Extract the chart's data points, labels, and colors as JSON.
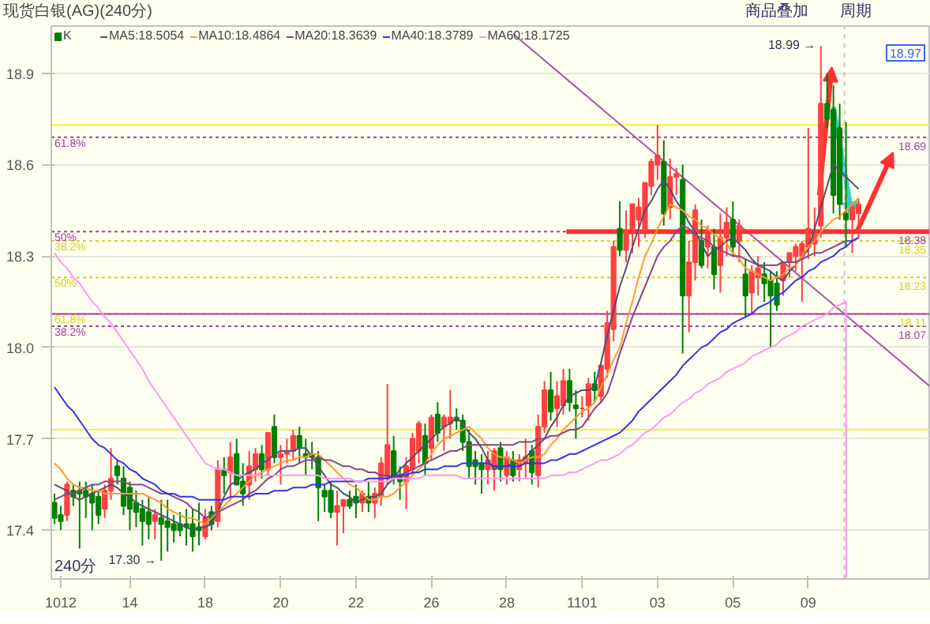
{
  "chart_data": {
    "type": "candlestick",
    "title": "现货白银(AG)(240分)",
    "annotations": [
      "商品叠加",
      "周期",
      "240分",
      "18.97",
      "61.8%",
      "50%",
      "38.2%",
      "50%",
      "61.8%",
      "38.2%",
      "17.30 →",
      "18.99 →"
    ],
    "categories": [
      null,
      "1012",
      null,
      null,
      null,
      null,
      null,
      null,
      null,
      null,
      null,
      null,
      "14",
      null,
      null,
      null,
      null,
      null,
      null,
      null,
      null,
      null,
      null,
      null,
      "18",
      null,
      null,
      null,
      null,
      null,
      null,
      null,
      null,
      null,
      null,
      null,
      "20",
      null,
      null,
      null,
      null,
      null,
      null,
      null,
      null,
      null,
      null,
      null,
      "22",
      null,
      null,
      null,
      null,
      null,
      null,
      null,
      null,
      null,
      null,
      null,
      "26",
      null,
      null,
      null,
      null,
      null,
      null,
      null,
      null,
      null,
      null,
      null,
      "28",
      null,
      null,
      null,
      null,
      null,
      null,
      null,
      null,
      null,
      null,
      null,
      "1101",
      null,
      null,
      null,
      null,
      null,
      null,
      null,
      null,
      null,
      null,
      null,
      "03",
      null,
      null,
      null,
      null,
      null,
      null,
      null,
      null,
      null,
      null,
      null,
      "05",
      null,
      null,
      null,
      null,
      null,
      null,
      null,
      null,
      null,
      null,
      null,
      "09",
      null,
      null,
      null,
      null,
      null,
      null,
      null,
      null
    ],
    "ylim": [
      17.24,
      19.055
    ],
    "yticks": [
      {
        "value": 17.4,
        "label": "17.4"
      },
      {
        "value": 17.7,
        "label": "17.7"
      },
      {
        "value": 18,
        "label": "18.0"
      },
      {
        "value": 18.3,
        "label": "18.3"
      },
      {
        "value": 18.6,
        "label": "18.6"
      },
      {
        "value": 18.9,
        "label": "18.9"
      }
    ],
    "grid": "y",
    "legend": "top left",
    "ref_lines": [
      {
        "axis": "y",
        "value": 18.73,
        "color": "#f0f040",
        "line_style": "solid"
      },
      {
        "axis": "y",
        "value": 17.73,
        "color": "#f0f040",
        "line_style": "solid"
      },
      {
        "axis": "y",
        "value": 18.69,
        "label": "18.69",
        "color": "#a040a0",
        "line_style": "dotted"
      },
      {
        "axis": "y",
        "value": 18.38,
        "label": "18.38",
        "color": "#a040a0",
        "line_style": "dotted"
      },
      {
        "axis": "y",
        "value": 18.35,
        "label": "18.35",
        "color": "#d8d020",
        "line_style": "dotted"
      },
      {
        "axis": "y",
        "value": 18.23,
        "label": "18.23",
        "color": "#d8d020",
        "line_style": "dotted"
      },
      {
        "axis": "y",
        "value": 18.11,
        "label": "18.11",
        "color": "#d8d020",
        "line_style": "dotted"
      },
      {
        "axis": "y",
        "value": 18.11,
        "color": "#a040a0",
        "line_style": "solid"
      },
      {
        "axis": "y",
        "value": 18.07,
        "label": "18.07",
        "color": "#a040a0",
        "line_style": "dotted"
      }
    ],
    "series": [
      {
        "name": "K",
        "colors": [
          "#008000",
          "#008000",
          "#ff4040",
          "#008000",
          "#008000",
          "#008000",
          "#008000",
          "#008000",
          "#ff4040",
          "#ff4040",
          "#008000",
          "#008000",
          "#008000",
          "#008000",
          "#008000",
          "#008000",
          "#ff4040",
          "#008000",
          "#008000",
          "#008000",
          "#008000",
          "#008000",
          "#008000",
          "#008000",
          "#ff4040",
          "#008000",
          "#ff4040",
          "#008000",
          "#ff4040",
          "#008000",
          "#008000",
          "#ff4040",
          "#ff4040",
          "#008000",
          "#ff4040",
          "#008000",
          "#ff4040",
          "#ff4040",
          "#ff4040",
          "#008000",
          "#008000",
          "#008000",
          "#008000",
          "#008000",
          "#008000",
          "#ff4040",
          "#ff4040",
          "#008000",
          "#008000",
          "#ff4040",
          "#008000",
          "#ff4040",
          "#ff4040",
          "#ff4040",
          "#008000",
          "#008000",
          "#ff4040",
          "#ff4040",
          "#ff4040",
          "#008000",
          "#ff4040",
          "#008000",
          "#ff4040",
          "#ff4040",
          "#008000",
          "#008000",
          "#008000",
          "#008000",
          "#008000",
          "#ff4040",
          "#ff4040",
          "#008000",
          "#ff4040",
          "#008000",
          "#ff4040",
          "#ff4040",
          "#008000",
          "#ff4040",
          "#ff4040",
          "#008000",
          "#ff4040",
          "#ff4040",
          "#008000",
          "#008000",
          "#ff4040",
          "#ff4040",
          "#008000",
          "#ff4040",
          "#ff4040",
          "#ff4040",
          "#008000",
          "#ff4040",
          "#ff4040",
          "#ff4040",
          "#ff4040",
          "#ff4040",
          "#ff4040",
          "#008000",
          "#ff4040",
          "#ff4040",
          "#008000",
          "#ff4040",
          "#ff4040",
          "#008000",
          "#ff4040",
          "#008000",
          "#ff4040",
          "#ff4040",
          "#008000",
          "#ff4040",
          "#008000",
          "#ff4040",
          "#ff4040",
          "#008000",
          "#008000",
          "#008000",
          "#ff4040",
          "#ff4040",
          "#ff4040",
          "#ff4040",
          "#ff4040",
          "#ff4040",
          "#ff4040",
          "#008000",
          "#008000",
          "#008000",
          "#008000",
          "#ff4040",
          "#ff4040"
        ],
        "ohlc": [
          [
            17.49,
            17.52,
            17.42,
            17.44
          ],
          [
            17.45,
            17.48,
            17.4,
            17.43
          ],
          [
            17.45,
            17.56,
            17.43,
            17.55
          ],
          [
            17.53,
            17.55,
            17.48,
            17.51
          ],
          [
            17.53,
            17.56,
            17.34,
            17.52
          ],
          [
            17.53,
            17.56,
            17.44,
            17.51
          ],
          [
            17.52,
            17.55,
            17.4,
            17.49
          ],
          [
            17.51,
            17.53,
            17.42,
            17.45
          ],
          [
            17.47,
            17.55,
            17.44,
            17.53
          ],
          [
            17.53,
            17.67,
            17.5,
            17.57
          ],
          [
            17.61,
            17.63,
            17.55,
            17.58
          ],
          [
            17.57,
            17.61,
            17.45,
            17.48
          ],
          [
            17.54,
            17.56,
            17.4,
            17.47
          ],
          [
            17.49,
            17.53,
            17.41,
            17.46
          ],
          [
            17.47,
            17.5,
            17.35,
            17.43
          ],
          [
            17.46,
            17.51,
            17.37,
            17.42
          ],
          [
            17.43,
            17.47,
            17.37,
            17.45
          ],
          [
            17.44,
            17.5,
            17.3,
            17.42
          ],
          [
            17.43,
            17.5,
            17.33,
            17.41
          ],
          [
            17.42,
            17.45,
            17.36,
            17.4
          ],
          [
            17.42,
            17.46,
            17.38,
            17.4
          ],
          [
            17.42,
            17.47,
            17.35,
            17.41
          ],
          [
            17.42,
            17.47,
            17.33,
            17.38
          ],
          [
            17.41,
            17.49,
            17.35,
            17.4
          ],
          [
            17.38,
            17.47,
            17.37,
            17.44
          ],
          [
            17.46,
            17.48,
            17.4,
            17.42
          ],
          [
            17.43,
            17.63,
            17.41,
            17.6
          ],
          [
            17.6,
            17.64,
            17.52,
            17.58
          ],
          [
            17.59,
            17.69,
            17.5,
            17.64
          ],
          [
            17.65,
            17.7,
            17.55,
            17.55
          ],
          [
            17.56,
            17.62,
            17.48,
            17.52
          ],
          [
            17.55,
            17.66,
            17.5,
            17.61
          ],
          [
            17.6,
            17.67,
            17.56,
            17.65
          ],
          [
            17.65,
            17.68,
            17.57,
            17.6
          ],
          [
            17.6,
            17.72,
            17.58,
            17.72
          ],
          [
            17.74,
            17.78,
            17.62,
            17.64
          ],
          [
            17.64,
            17.68,
            17.55,
            17.65
          ],
          [
            17.65,
            17.7,
            17.62,
            17.66
          ],
          [
            17.66,
            17.73,
            17.63,
            17.71
          ],
          [
            17.71,
            17.74,
            17.62,
            17.67
          ],
          [
            17.65,
            17.7,
            17.58,
            17.64
          ],
          [
            17.65,
            17.69,
            17.6,
            17.64
          ],
          [
            17.64,
            17.66,
            17.43,
            17.54
          ],
          [
            17.53,
            17.55,
            17.46,
            17.51
          ],
          [
            17.53,
            17.56,
            17.44,
            17.46
          ],
          [
            17.46,
            17.53,
            17.35,
            17.48
          ],
          [
            17.48,
            17.5,
            17.39,
            17.5
          ],
          [
            17.5,
            17.53,
            17.47,
            17.48
          ],
          [
            17.51,
            17.55,
            17.44,
            17.49
          ],
          [
            17.49,
            17.53,
            17.46,
            17.52
          ],
          [
            17.51,
            17.56,
            17.46,
            17.49
          ],
          [
            17.49,
            17.54,
            17.44,
            17.52
          ],
          [
            17.51,
            17.64,
            17.48,
            17.62
          ],
          [
            17.57,
            17.88,
            17.55,
            17.68
          ],
          [
            17.66,
            17.71,
            17.55,
            17.57
          ],
          [
            17.58,
            17.61,
            17.5,
            17.56
          ],
          [
            17.56,
            17.64,
            17.47,
            17.61
          ],
          [
            17.6,
            17.72,
            17.58,
            17.7
          ],
          [
            17.66,
            17.76,
            17.62,
            17.75
          ],
          [
            17.71,
            17.75,
            17.58,
            17.62
          ],
          [
            17.67,
            17.78,
            17.63,
            17.77
          ],
          [
            17.78,
            17.82,
            17.69,
            17.72
          ],
          [
            17.74,
            17.78,
            17.66,
            17.77
          ],
          [
            17.75,
            17.86,
            17.7,
            17.77
          ],
          [
            17.77,
            17.8,
            17.73,
            17.76
          ],
          [
            17.76,
            17.78,
            17.66,
            17.69
          ],
          [
            17.69,
            17.73,
            17.57,
            17.61
          ],
          [
            17.63,
            17.66,
            17.55,
            17.61
          ],
          [
            17.62,
            17.65,
            17.52,
            17.6
          ],
          [
            17.6,
            17.66,
            17.55,
            17.63
          ],
          [
            17.6,
            17.67,
            17.53,
            17.66
          ],
          [
            17.67,
            17.69,
            17.56,
            17.6
          ],
          [
            17.58,
            17.66,
            17.55,
            17.64
          ],
          [
            17.63,
            17.66,
            17.56,
            17.58
          ],
          [
            17.6,
            17.65,
            17.56,
            17.63
          ],
          [
            17.62,
            17.7,
            17.57,
            17.64
          ],
          [
            17.66,
            17.68,
            17.55,
            17.59
          ],
          [
            17.58,
            17.78,
            17.54,
            17.74
          ],
          [
            17.74,
            17.89,
            17.72,
            17.86
          ],
          [
            17.86,
            17.92,
            17.76,
            17.79
          ],
          [
            17.8,
            17.89,
            17.74,
            17.84
          ],
          [
            17.81,
            17.93,
            17.78,
            17.89
          ],
          [
            17.89,
            17.93,
            17.79,
            17.82
          ],
          [
            17.81,
            17.86,
            17.7,
            17.8
          ],
          [
            17.8,
            17.84,
            17.77,
            17.8
          ],
          [
            17.81,
            17.9,
            17.76,
            17.88
          ],
          [
            17.88,
            17.92,
            17.82,
            17.86
          ],
          [
            17.84,
            17.95,
            17.82,
            17.94
          ],
          [
            17.93,
            18.12,
            17.9,
            18.08
          ],
          [
            18.06,
            18.35,
            18.02,
            18.33
          ],
          [
            18.39,
            18.48,
            18.3,
            18.32
          ],
          [
            18.32,
            18.45,
            18.28,
            18.38
          ],
          [
            18.38,
            18.47,
            18.31,
            18.47
          ],
          [
            18.42,
            18.49,
            18.33,
            18.46
          ],
          [
            18.38,
            18.54,
            18.36,
            18.54
          ],
          [
            18.53,
            18.62,
            18.5,
            18.61
          ],
          [
            18.6,
            18.73,
            18.55,
            18.63
          ],
          [
            18.61,
            18.68,
            18.4,
            18.44
          ],
          [
            18.46,
            18.62,
            18.42,
            18.56
          ],
          [
            18.56,
            18.59,
            18.5,
            18.57
          ],
          [
            18.55,
            18.6,
            17.98,
            18.17
          ],
          [
            18.17,
            18.35,
            18.05,
            18.28
          ],
          [
            18.28,
            18.47,
            18.22,
            18.45
          ],
          [
            18.35,
            18.42,
            18.26,
            18.27
          ],
          [
            18.33,
            18.4,
            18.26,
            18.38
          ],
          [
            18.33,
            18.39,
            18.19,
            18.24
          ],
          [
            18.27,
            18.44,
            18.18,
            18.36
          ],
          [
            18.36,
            18.46,
            18.3,
            18.41
          ],
          [
            18.42,
            18.48,
            18.3,
            18.33
          ],
          [
            18.35,
            18.42,
            18.28,
            18.4
          ],
          [
            18.24,
            18.29,
            18.1,
            18.17
          ],
          [
            18.18,
            18.27,
            18.11,
            18.25
          ],
          [
            18.23,
            18.3,
            18.17,
            18.26
          ],
          [
            18.24,
            18.28,
            18.15,
            18.21
          ],
          [
            18.22,
            18.25,
            18.0,
            18.17
          ],
          [
            18.21,
            18.25,
            18.12,
            18.14
          ],
          [
            18.22,
            18.28,
            18.17,
            18.28
          ],
          [
            18.28,
            18.31,
            18.23,
            18.31
          ],
          [
            18.3,
            18.34,
            18.25,
            18.33
          ],
          [
            18.3,
            18.35,
            18.15,
            18.34
          ],
          [
            18.33,
            18.72,
            18.29,
            18.39
          ],
          [
            18.34,
            18.46,
            18.3,
            18.38
          ],
          [
            18.4,
            18.99,
            18.36,
            18.8
          ],
          [
            18.8,
            18.9,
            18.72,
            18.75
          ],
          [
            18.78,
            18.86,
            18.44,
            18.5
          ],
          [
            18.72,
            18.8,
            18.42,
            18.47
          ],
          [
            18.44,
            18.74,
            18.33,
            18.42
          ],
          [
            18.42,
            18.47,
            18.31,
            18.46
          ],
          [
            18.44,
            18.49,
            18.36,
            18.47
          ]
        ]
      },
      {
        "name": "MA5:18.5054",
        "type": "line",
        "color": "#505070",
        "values": [
          17.55,
          17.54,
          17.53,
          17.51,
          17.5,
          17.51,
          17.52,
          17.53,
          17.54,
          17.55,
          17.54,
          17.52,
          17.51,
          17.49,
          17.48,
          17.47,
          17.46,
          17.45,
          17.44,
          17.43,
          17.42,
          17.41,
          17.4,
          17.41,
          17.41,
          17.42,
          17.46,
          17.51,
          17.55,
          17.56,
          17.58,
          17.59,
          17.6,
          17.62,
          17.63,
          17.65,
          17.66,
          17.66,
          17.66,
          17.67,
          17.67,
          17.64,
          17.61,
          17.58,
          17.55,
          17.54,
          17.52,
          17.51,
          17.49,
          17.5,
          17.51,
          17.51,
          17.52,
          17.55,
          17.57,
          17.6,
          17.62,
          17.64,
          17.66,
          17.68,
          17.7,
          17.72,
          17.74,
          17.75,
          17.77,
          17.75,
          17.72,
          17.7,
          17.67,
          17.63,
          17.6,
          17.61,
          17.61,
          17.62,
          17.62,
          17.64,
          17.66,
          17.68,
          17.7,
          17.74,
          17.77,
          17.81,
          17.84,
          17.85,
          17.86,
          17.86,
          17.87,
          17.95,
          18.04,
          18.12,
          18.2,
          18.26,
          18.33,
          18.39,
          18.45,
          18.48,
          18.52,
          18.55,
          18.52,
          18.48,
          18.45,
          18.41,
          18.38,
          18.34,
          18.3,
          18.32,
          18.33,
          18.35,
          18.36,
          18.34,
          18.32,
          18.29,
          18.27,
          18.26,
          18.25,
          18.23,
          18.22,
          18.25,
          18.27,
          18.3,
          18.32,
          18.39,
          18.46,
          18.53,
          18.6,
          18.58,
          18.56,
          18.54,
          18.52
        ]
      },
      {
        "name": "MA10:18.4864",
        "type": "line",
        "color": "#ff9933",
        "values": [
          17.62,
          17.6,
          17.57,
          17.55,
          17.54,
          17.54,
          17.53,
          17.53,
          17.52,
          17.52,
          17.52,
          17.52,
          17.52,
          17.52,
          17.52,
          17.51,
          17.5,
          17.49,
          17.47,
          17.46,
          17.45,
          17.44,
          17.44,
          17.43,
          17.42,
          17.44,
          17.46,
          17.48,
          17.5,
          17.52,
          17.54,
          17.56,
          17.58,
          17.59,
          17.6,
          17.61,
          17.62,
          17.63,
          17.63,
          17.64,
          17.64,
          17.65,
          17.65,
          17.63,
          17.61,
          17.59,
          17.57,
          17.55,
          17.54,
          17.52,
          17.5,
          17.5,
          17.51,
          17.51,
          17.52,
          17.54,
          17.56,
          17.58,
          17.6,
          17.62,
          17.65,
          17.68,
          17.7,
          17.71,
          17.72,
          17.73,
          17.74,
          17.72,
          17.7,
          17.67,
          17.65,
          17.64,
          17.64,
          17.63,
          17.62,
          17.63,
          17.64,
          17.64,
          17.65,
          17.68,
          17.7,
          17.73,
          17.75,
          17.77,
          17.79,
          17.8,
          17.82,
          17.87,
          17.91,
          17.96,
          18.0,
          18.08,
          18.15,
          18.23,
          18.3,
          18.34,
          18.39,
          18.43,
          18.47,
          18.46,
          18.45,
          18.43,
          18.42,
          18.4,
          18.39,
          18.37,
          18.36,
          18.34,
          18.31,
          18.29,
          18.26,
          18.25,
          18.24,
          18.23,
          18.22,
          18.23,
          18.24,
          18.26,
          18.27,
          18.3,
          18.33,
          18.35,
          18.38,
          18.4,
          18.42,
          18.43,
          18.45,
          18.47,
          18.49
        ]
      },
      {
        "name": "MA20:18.3639",
        "type": "line",
        "color": "#884488",
        "values": [
          17.5,
          17.51,
          17.52,
          17.52,
          17.53,
          17.54,
          17.55,
          17.55,
          17.56,
          17.56,
          17.56,
          17.56,
          17.55,
          17.55,
          17.55,
          17.54,
          17.53,
          17.52,
          17.52,
          17.51,
          17.5,
          17.49,
          17.47,
          17.46,
          17.44,
          17.45,
          17.46,
          17.47,
          17.48,
          17.49,
          17.5,
          17.52,
          17.53,
          17.55,
          17.57,
          17.58,
          17.6,
          17.61,
          17.61,
          17.62,
          17.63,
          17.63,
          17.64,
          17.63,
          17.63,
          17.62,
          17.61,
          17.61,
          17.6,
          17.6,
          17.59,
          17.59,
          17.58,
          17.58,
          17.57,
          17.58,
          17.59,
          17.6,
          17.61,
          17.62,
          17.63,
          17.64,
          17.65,
          17.66,
          17.66,
          17.67,
          17.68,
          17.68,
          17.68,
          17.68,
          17.68,
          17.68,
          17.68,
          17.68,
          17.69,
          17.69,
          17.69,
          17.7,
          17.7,
          17.71,
          17.71,
          17.72,
          17.73,
          17.73,
          17.74,
          17.77,
          17.8,
          17.82,
          17.85,
          17.91,
          17.98,
          18.04,
          18.1,
          18.15,
          18.2,
          18.25,
          18.3,
          18.33,
          18.35,
          18.38,
          18.4,
          18.39,
          18.37,
          18.36,
          18.35,
          18.33,
          18.32,
          18.31,
          18.3,
          18.3,
          18.29,
          18.28,
          18.27,
          18.27,
          18.27,
          18.27,
          18.28,
          18.28,
          18.28,
          18.29,
          18.3,
          18.31,
          18.31,
          18.32,
          18.33,
          18.34,
          18.35,
          18.35,
          18.36
        ]
      },
      {
        "name": "MA40:18.3789",
        "type": "line",
        "color": "#3333ee",
        "values": [
          17.87,
          17.84,
          17.81,
          17.79,
          17.76,
          17.73,
          17.7,
          17.68,
          17.67,
          17.65,
          17.63,
          17.62,
          17.6,
          17.59,
          17.57,
          17.56,
          17.55,
          17.53,
          17.52,
          17.52,
          17.51,
          17.51,
          17.51,
          17.5,
          17.5,
          17.5,
          17.5,
          17.5,
          17.51,
          17.51,
          17.51,
          17.51,
          17.52,
          17.52,
          17.52,
          17.53,
          17.53,
          17.53,
          17.54,
          17.54,
          17.54,
          17.55,
          17.55,
          17.55,
          17.56,
          17.56,
          17.56,
          17.56,
          17.56,
          17.56,
          17.57,
          17.57,
          17.57,
          17.57,
          17.58,
          17.58,
          17.58,
          17.59,
          17.59,
          17.6,
          17.6,
          17.6,
          17.61,
          17.61,
          17.61,
          17.62,
          17.62,
          17.62,
          17.62,
          17.62,
          17.61,
          17.61,
          17.61,
          17.61,
          17.61,
          17.62,
          17.62,
          17.62,
          17.62,
          17.63,
          17.63,
          17.64,
          17.65,
          17.65,
          17.66,
          17.67,
          17.68,
          17.69,
          17.7,
          17.71,
          17.72,
          17.74,
          17.76,
          17.79,
          17.81,
          17.83,
          17.85,
          17.87,
          17.89,
          17.91,
          17.94,
          17.96,
          17.98,
          18.0,
          18.01,
          18.03,
          18.05,
          18.06,
          18.08,
          18.09,
          18.1,
          18.11,
          18.13,
          18.14,
          18.15,
          18.17,
          18.18,
          18.2,
          18.22,
          18.23,
          18.25,
          18.26,
          18.28,
          18.29,
          18.3,
          18.32,
          18.33,
          18.35,
          18.36
        ]
      },
      {
        "name": "MA60:18.1725",
        "type": "line",
        "color": "#ff99ee",
        "values": [
          18.31,
          18.28,
          18.26,
          18.23,
          18.21,
          18.18,
          18.15,
          18.13,
          18.1,
          18.08,
          18.05,
          18.02,
          17.99,
          17.96,
          17.93,
          17.89,
          17.86,
          17.83,
          17.8,
          17.77,
          17.74,
          17.71,
          17.68,
          17.65,
          17.62,
          17.61,
          17.6,
          17.6,
          17.59,
          17.58,
          17.58,
          17.58,
          17.58,
          17.58,
          17.58,
          17.58,
          17.58,
          17.58,
          17.58,
          17.58,
          17.58,
          17.58,
          17.58,
          17.57,
          17.57,
          17.57,
          17.57,
          17.57,
          17.56,
          17.56,
          17.56,
          17.56,
          17.56,
          17.56,
          17.57,
          17.57,
          17.57,
          17.57,
          17.57,
          17.58,
          17.58,
          17.58,
          17.58,
          17.58,
          17.58,
          17.57,
          17.57,
          17.57,
          17.57,
          17.57,
          17.57,
          17.57,
          17.57,
          17.57,
          17.57,
          17.57,
          17.57,
          17.57,
          17.57,
          17.58,
          17.58,
          17.58,
          17.59,
          17.59,
          17.6,
          17.61,
          17.62,
          17.63,
          17.63,
          17.64,
          17.65,
          17.67,
          17.68,
          17.7,
          17.72,
          17.73,
          17.75,
          17.77,
          17.78,
          17.8,
          17.82,
          17.83,
          17.85,
          17.86,
          17.88,
          17.89,
          17.9,
          17.92,
          17.93,
          17.94,
          17.95,
          17.97,
          17.98,
          17.99,
          18.0,
          18.01,
          18.03,
          18.04,
          18.05,
          18.07,
          18.08,
          18.09,
          18.1,
          18.11,
          18.13,
          18.14,
          18.15,
          null,
          null
        ]
      }
    ]
  }
}
